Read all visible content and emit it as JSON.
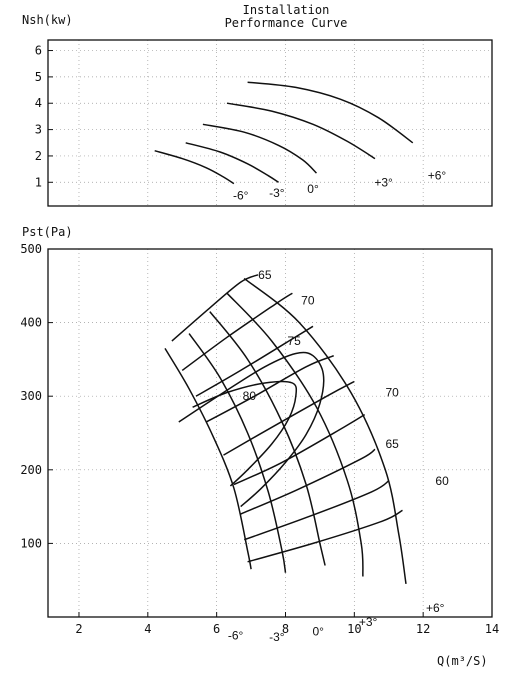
{
  "title_lines": [
    "Installation",
    "Performance Curve"
  ],
  "chart_data": [
    {
      "type": "line",
      "id": "power",
      "ylabel": "Nsh(kw)",
      "xlim": [
        1.1,
        14
      ],
      "ylim": [
        0.1,
        6.4
      ],
      "yticks": [
        1,
        2,
        3,
        4,
        5,
        6
      ],
      "grid": true,
      "series": [
        {
          "name": "-6°",
          "points": [
            [
              4.2,
              2.2
            ],
            [
              5.0,
              1.9
            ],
            [
              5.7,
              1.55
            ],
            [
              6.2,
              1.2
            ],
            [
              6.5,
              0.95
            ]
          ]
        },
        {
          "name": "-3°",
          "points": [
            [
              5.1,
              2.5
            ],
            [
              6.1,
              2.15
            ],
            [
              6.9,
              1.7
            ],
            [
              7.5,
              1.25
            ],
            [
              7.8,
              1.0
            ]
          ]
        },
        {
          "name": "0°",
          "points": [
            [
              5.6,
              3.2
            ],
            [
              6.8,
              2.9
            ],
            [
              7.8,
              2.4
            ],
            [
              8.5,
              1.85
            ],
            [
              8.9,
              1.35
            ]
          ]
        },
        {
          "name": "+3°",
          "points": [
            [
              6.3,
              4.0
            ],
            [
              7.6,
              3.7
            ],
            [
              8.8,
              3.2
            ],
            [
              9.8,
              2.55
            ],
            [
              10.6,
              1.9
            ]
          ]
        },
        {
          "name": "+6°",
          "points": [
            [
              6.9,
              4.8
            ],
            [
              8.3,
              4.6
            ],
            [
              9.6,
              4.15
            ],
            [
              10.7,
              3.45
            ],
            [
              11.7,
              2.5
            ]
          ]
        }
      ],
      "annotations": [
        {
          "text": "-6°",
          "x": 6.7,
          "y": 0.5
        },
        {
          "text": "-3°",
          "x": 7.75,
          "y": 0.6
        },
        {
          "text": "0°",
          "x": 8.8,
          "y": 0.75
        },
        {
          "text": "+3°",
          "x": 10.85,
          "y": 1.0
        },
        {
          "text": "+6°",
          "x": 12.4,
          "y": 1.25
        }
      ]
    },
    {
      "type": "line",
      "id": "pressure",
      "ylabel": "Pst(Pa)",
      "xlabel": "Q(m³/S)",
      "xlim": [
        1.1,
        14
      ],
      "ylim": [
        0,
        500
      ],
      "xticks": [
        2,
        4,
        6,
        8,
        10,
        12,
        14
      ],
      "yticks": [
        100,
        200,
        300,
        400,
        500
      ],
      "grid": true,
      "blade_angle_curves": [
        {
          "name": "-6°",
          "points": [
            [
              4.5,
              365
            ],
            [
              5.2,
              310
            ],
            [
              5.9,
              245
            ],
            [
              6.5,
              175
            ],
            [
              6.9,
              90
            ],
            [
              7.0,
              65
            ]
          ]
        },
        {
          "name": "-3°",
          "points": [
            [
              5.2,
              385
            ],
            [
              6.1,
              325
            ],
            [
              6.9,
              250
            ],
            [
              7.5,
              170
            ],
            [
              7.9,
              90
            ],
            [
              8.0,
              60
            ]
          ]
        },
        {
          "name": "0°",
          "points": [
            [
              5.8,
              415
            ],
            [
              6.9,
              350
            ],
            [
              7.9,
              265
            ],
            [
              8.6,
              180
            ],
            [
              9.0,
              100
            ],
            [
              9.15,
              70
            ]
          ]
        },
        {
          "name": "+3°",
          "points": [
            [
              6.3,
              440
            ],
            [
              7.6,
              375
            ],
            [
              8.9,
              285
            ],
            [
              9.8,
              185
            ],
            [
              10.2,
              100
            ],
            [
              10.25,
              55
            ]
          ]
        },
        {
          "name": "+6°",
          "points": [
            [
              6.8,
              460
            ],
            [
              8.4,
              400
            ],
            [
              9.9,
              305
            ],
            [
              10.9,
              200
            ],
            [
              11.3,
              110
            ],
            [
              11.5,
              45
            ]
          ]
        }
      ],
      "system_curves": [
        {
          "points": [
            [
              4.7,
              375
            ],
            [
              5.8,
              420
            ],
            [
              6.7,
              455
            ],
            [
              7.2,
              465
            ]
          ]
        },
        {
          "points": [
            [
              5.0,
              335
            ],
            [
              6.3,
              380
            ],
            [
              7.7,
              425
            ],
            [
              8.2,
              440
            ]
          ]
        },
        {
          "points": [
            [
              5.4,
              300
            ],
            [
              6.7,
              335
            ],
            [
              8.1,
              375
            ],
            [
              8.8,
              395
            ]
          ]
        },
        {
          "points": [
            [
              5.7,
              265
            ],
            [
              7.1,
              300
            ],
            [
              8.6,
              340
            ],
            [
              9.4,
              355
            ]
          ]
        },
        {
          "points": [
            [
              6.2,
              220
            ],
            [
              7.5,
              255
            ],
            [
              9.2,
              300
            ],
            [
              10.0,
              320
            ]
          ]
        },
        {
          "points": [
            [
              6.5,
              180
            ],
            [
              7.9,
              210
            ],
            [
              9.7,
              258
            ],
            [
              10.3,
              275
            ]
          ]
        },
        {
          "points": [
            [
              6.7,
              140
            ],
            [
              8.3,
              172
            ],
            [
              10.2,
              215
            ],
            [
              10.6,
              228
            ]
          ]
        },
        {
          "points": [
            [
              6.8,
              105
            ],
            [
              8.6,
              135
            ],
            [
              10.5,
              170
            ],
            [
              11.0,
              185
            ]
          ]
        },
        {
          "points": [
            [
              6.9,
              75
            ],
            [
              8.8,
              100
            ],
            [
              10.8,
              130
            ],
            [
              11.4,
              145
            ]
          ]
        }
      ],
      "efficiency_contours": [
        {
          "name": "80",
          "closed": false,
          "points": [
            [
              5.3,
              285
            ],
            [
              6.3,
              305
            ],
            [
              7.4,
              318
            ],
            [
              8.2,
              318
            ],
            [
              8.3,
              300
            ],
            [
              8.1,
              270
            ],
            [
              7.6,
              235
            ],
            [
              6.9,
              200
            ],
            [
              6.4,
              178
            ]
          ]
        },
        {
          "name": "75",
          "closed": false,
          "points": [
            [
              4.9,
              265
            ],
            [
              6.2,
              305
            ],
            [
              7.4,
              340
            ],
            [
              8.3,
              358
            ],
            [
              8.8,
              355
            ],
            [
              9.1,
              330
            ],
            [
              9.0,
              290
            ],
            [
              8.6,
              248
            ],
            [
              8.0,
              210
            ],
            [
              7.3,
              175
            ],
            [
              6.7,
              150
            ]
          ]
        }
      ],
      "annotations": [
        {
          "text": "65",
          "x": 7.4,
          "y": 465
        },
        {
          "text": "70",
          "x": 8.65,
          "y": 430
        },
        {
          "text": "75",
          "x": 8.25,
          "y": 375
        },
        {
          "text": "80",
          "x": 6.95,
          "y": 300
        },
        {
          "text": "70",
          "x": 11.1,
          "y": 305
        },
        {
          "text": "65",
          "x": 11.1,
          "y": 235
        },
        {
          "text": "60",
          "x": 12.55,
          "y": 185
        },
        {
          "text": "-6°",
          "x": 6.55,
          "y": -25
        },
        {
          "text": "-3°",
          "x": 7.75,
          "y": -27
        },
        {
          "text": "0°",
          "x": 8.95,
          "y": -20
        },
        {
          "text": "+3°",
          "x": 10.4,
          "y": -7
        },
        {
          "text": "+6°",
          "x": 12.35,
          "y": 12
        }
      ]
    }
  ]
}
